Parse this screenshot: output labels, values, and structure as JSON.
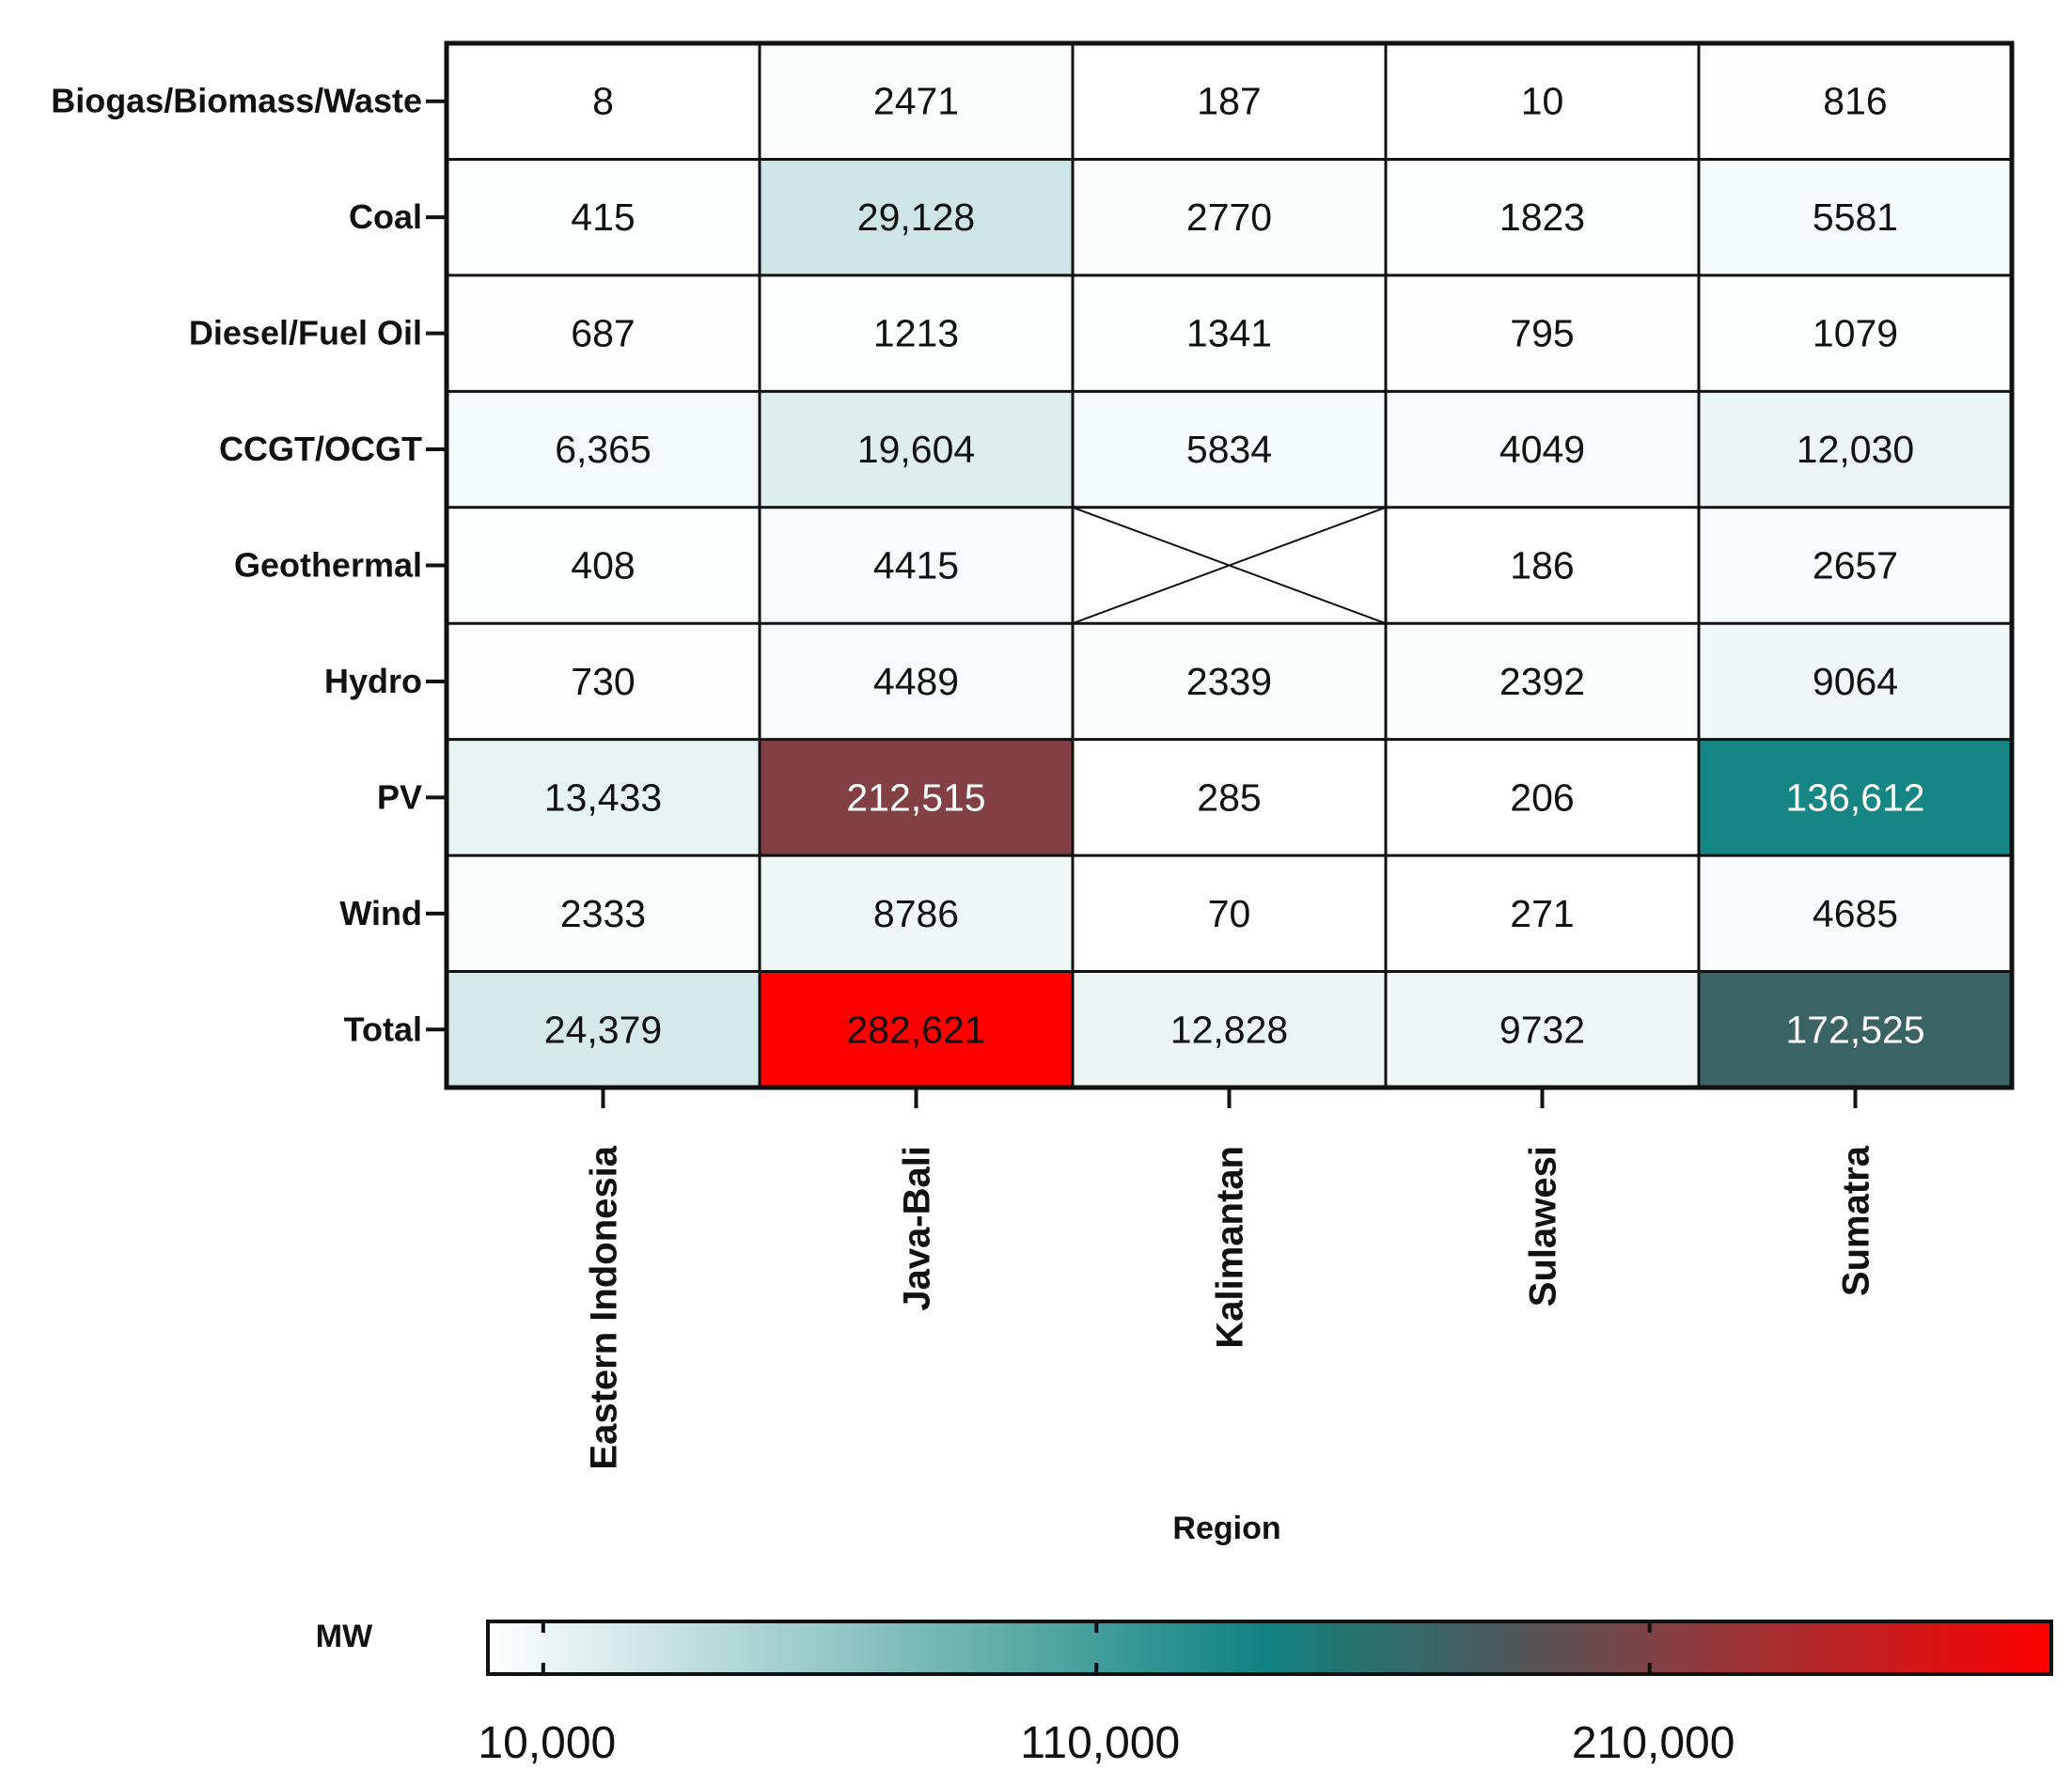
{
  "chart_data": {
    "type": "heatmap",
    "xlabel": "Region",
    "columns": [
      "Eastern Indonesia",
      "Java-Bali",
      "Kalimantan",
      "Sulawesi",
      "Sumatra"
    ],
    "rows": [
      "Biogas/Biomass/Waste",
      "Coal",
      "Diesel/Fuel Oil",
      "CCGT/OCGT",
      "Geothermal",
      "Hydro",
      "PV",
      "Wind",
      "Total"
    ],
    "values": [
      [
        8,
        2471,
        187,
        10,
        816
      ],
      [
        415,
        29128,
        2770,
        1823,
        5581
      ],
      [
        687,
        1213,
        1341,
        795,
        1079
      ],
      [
        6365,
        19604,
        5834,
        4049,
        12030
      ],
      [
        408,
        4415,
        null,
        186,
        2657
      ],
      [
        730,
        4489,
        2339,
        2392,
        9064
      ],
      [
        13433,
        212515,
        285,
        206,
        136612
      ],
      [
        2333,
        8786,
        70,
        271,
        4685
      ],
      [
        24379,
        282621,
        12828,
        9732,
        172525
      ]
    ],
    "labels": [
      [
        "8",
        "2471",
        "187",
        "10",
        "816"
      ],
      [
        "415",
        "29,128",
        "2770",
        "1823",
        "5581"
      ],
      [
        "687",
        "1213",
        "1341",
        "795",
        "1079"
      ],
      [
        "6,365",
        "19,604",
        "5834",
        "4049",
        "12,030"
      ],
      [
        "408",
        "4415",
        "",
        "186",
        "2657"
      ],
      [
        "730",
        "4489",
        "2339",
        "2392",
        "9064"
      ],
      [
        "13,433",
        "212,515",
        "285",
        "206",
        "136,612"
      ],
      [
        "2333",
        "8786",
        "70",
        "271",
        "4685"
      ],
      [
        "24,379",
        "282,621",
        "12,828",
        "9732",
        "172,525"
      ]
    ],
    "missing_cells": [
      [
        4,
        2
      ]
    ],
    "colorbar": {
      "title": "MW",
      "range": [
        0,
        282621
      ],
      "ticks": [
        10000,
        110000,
        210000
      ],
      "tick_labels": [
        "10,000",
        "110,000",
        "210,000"
      ],
      "color_stops": [
        {
          "value": 0,
          "color": "#ffffff"
        },
        {
          "value": 140000,
          "color": "#0f8380"
        },
        {
          "value": 180000,
          "color": "#465c5d"
        },
        {
          "value": 212000,
          "color": "#824044"
        },
        {
          "value": 282621,
          "color": "#ff0000"
        }
      ]
    }
  }
}
